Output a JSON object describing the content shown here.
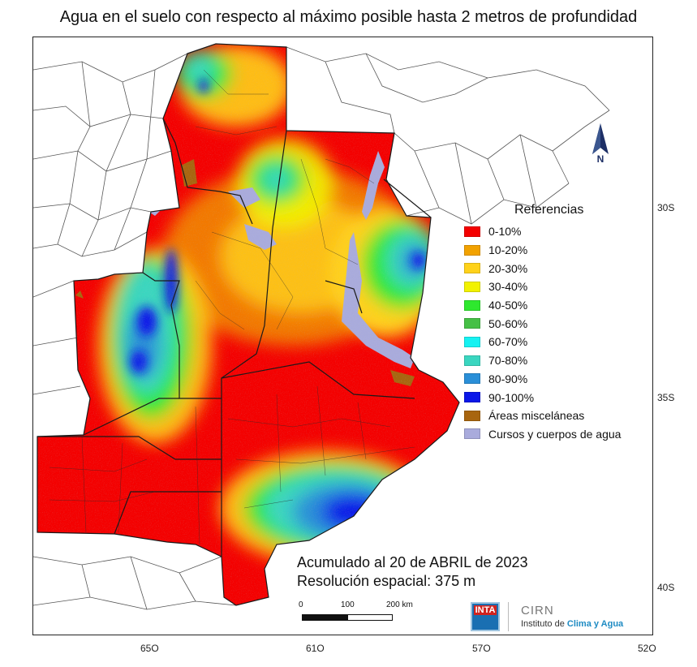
{
  "title": "Agua en el suelo con respecto al máximo posible hasta 2 metros de profundidad",
  "legend": {
    "title": "Referencias",
    "items": [
      {
        "label": "0-10%",
        "color": "#f40000"
      },
      {
        "label": "10-20%",
        "color": "#f2a200"
      },
      {
        "label": "20-30%",
        "color": "#ffd21a"
      },
      {
        "label": "30-40%",
        "color": "#f2f200"
      },
      {
        "label": "40-50%",
        "color": "#2ee82e"
      },
      {
        "label": "50-60%",
        "color": "#46c046"
      },
      {
        "label": "60-70%",
        "color": "#16f2f2"
      },
      {
        "label": "70-80%",
        "color": "#3ad6c0"
      },
      {
        "label": "80-90%",
        "color": "#2a8fd8"
      },
      {
        "label": "90-100%",
        "color": "#0a17e8"
      },
      {
        "label": "Áreas misceláneas",
        "color": "#a8650f"
      },
      {
        "label": "Cursos y cuerpos de agua",
        "color": "#a9abdc"
      }
    ]
  },
  "latitude_labels": [
    "30S",
    "35S",
    "40S"
  ],
  "longitude_labels": [
    "65O",
    "61O",
    "57O",
    "52O"
  ],
  "info": {
    "line1": "Acumulado al 20 de ABRIL de 2023",
    "line2": "Resolución espacial: 375 m"
  },
  "scale_bar": {
    "labels": [
      "0",
      "100",
      "200 km"
    ]
  },
  "north_arrow": {
    "letter": "N",
    "icon": "north-arrow-icon"
  },
  "logos": {
    "inta": "INTA",
    "cirn_name": "CIRN",
    "cirn_sub_prefix": "Instituto de ",
    "cirn_sub_bold": "Clima y Agua"
  }
}
